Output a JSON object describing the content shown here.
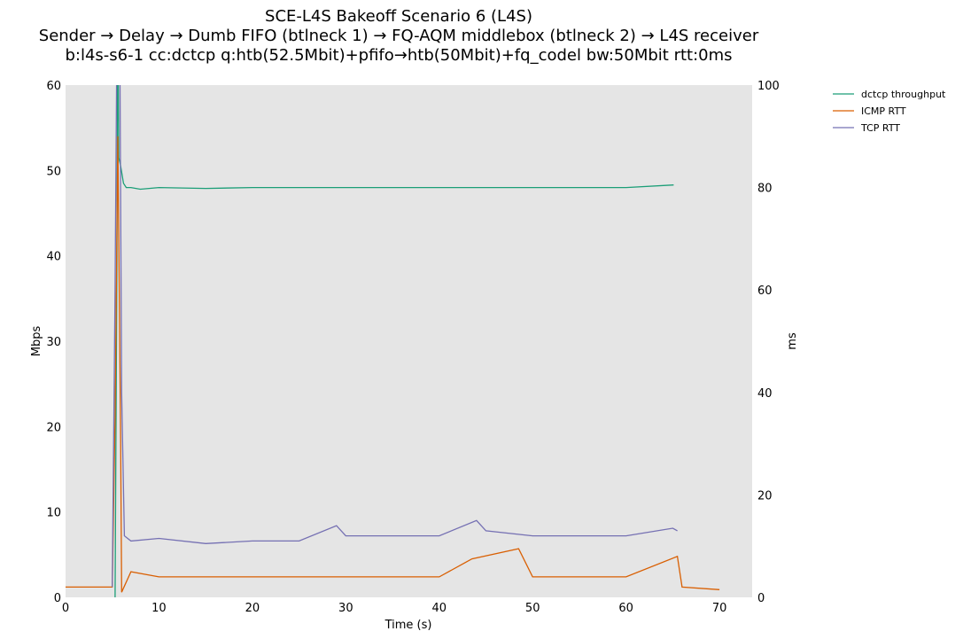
{
  "chart_data": {
    "type": "line",
    "title_lines": [
      "SCE-L4S Bakeoff Scenario 6 (L4S)",
      "Sender → Delay → Dumb FIFO (btlneck 1) → FQ-AQM middlebox (btlneck 2) → L4S receiver",
      "b:l4s-s6-1 cc:dctcp q:htb(52.5Mbit)+pfifo→htb(50Mbit)+fq_codel bw:50Mbit rtt:0ms"
    ],
    "xlabel": "Time (s)",
    "ylabel_left": "Mbps",
    "ylabel_right": "ms",
    "xlim": [
      0,
      73.5
    ],
    "ylim_left": [
      0,
      60
    ],
    "ylim_right": [
      0,
      100
    ],
    "x_ticks": [
      0,
      10,
      20,
      30,
      40,
      50,
      60,
      70
    ],
    "y_ticks_left": [
      0,
      10,
      20,
      30,
      40,
      50,
      60
    ],
    "y_ticks_right": [
      0,
      20,
      40,
      60,
      80,
      100
    ],
    "grid": false,
    "legend_position": "outside-top-right",
    "colors": {
      "dctcp_throughput": "#1b9e77",
      "icmp_rtt": "#d95f02",
      "tcp_rtt": "#7570b3",
      "plot_bg": "#e5e5e5"
    },
    "series": [
      {
        "name": "dctcp throughput",
        "axis": "left",
        "color": "#1b9e77",
        "points": [
          [
            5.3,
            0
          ],
          [
            5.5,
            40
          ],
          [
            5.6,
            70
          ],
          [
            5.7,
            51.5
          ],
          [
            5.9,
            50.5
          ],
          [
            6.2,
            48.5
          ],
          [
            6.5,
            48
          ],
          [
            7,
            48
          ],
          [
            8,
            47.8
          ],
          [
            10,
            48
          ],
          [
            15,
            47.9
          ],
          [
            20,
            48
          ],
          [
            25,
            48
          ],
          [
            30,
            48
          ],
          [
            35,
            48
          ],
          [
            40,
            48
          ],
          [
            45,
            48
          ],
          [
            50,
            48
          ],
          [
            55,
            48
          ],
          [
            60,
            48
          ],
          [
            65.1,
            48.3
          ]
        ]
      },
      {
        "name": "ICMP RTT",
        "axis": "right",
        "color": "#d95f02",
        "points": [
          [
            0,
            2
          ],
          [
            1,
            2
          ],
          [
            2,
            2
          ],
          [
            3,
            2
          ],
          [
            4,
            2
          ],
          [
            5,
            2
          ],
          [
            5.3,
            35
          ],
          [
            5.6,
            90
          ],
          [
            5.9,
            30
          ],
          [
            6,
            1
          ],
          [
            7,
            5
          ],
          [
            10,
            4
          ],
          [
            20,
            4
          ],
          [
            30,
            4
          ],
          [
            40,
            4
          ],
          [
            43.5,
            7.5
          ],
          [
            48.5,
            9.5
          ],
          [
            50,
            4
          ],
          [
            60,
            4
          ],
          [
            65.5,
            8
          ],
          [
            66,
            2
          ],
          [
            70,
            1.5
          ]
        ]
      },
      {
        "name": "TCP RTT",
        "axis": "right",
        "color": "#7570b3",
        "points": [
          [
            5,
            2
          ],
          [
            5.3,
            60
          ],
          [
            5.5,
            110
          ],
          [
            5.8,
            110
          ],
          [
            6,
            40
          ],
          [
            6.3,
            12
          ],
          [
            7,
            11
          ],
          [
            10,
            11.5
          ],
          [
            15,
            10.5
          ],
          [
            20,
            11
          ],
          [
            25,
            11
          ],
          [
            29,
            14
          ],
          [
            30,
            12
          ],
          [
            35,
            12
          ],
          [
            40,
            12
          ],
          [
            44,
            15
          ],
          [
            45,
            13
          ],
          [
            50,
            12
          ],
          [
            55,
            12
          ],
          [
            60,
            12
          ],
          [
            65,
            13.5
          ],
          [
            65.5,
            13
          ]
        ]
      }
    ]
  }
}
